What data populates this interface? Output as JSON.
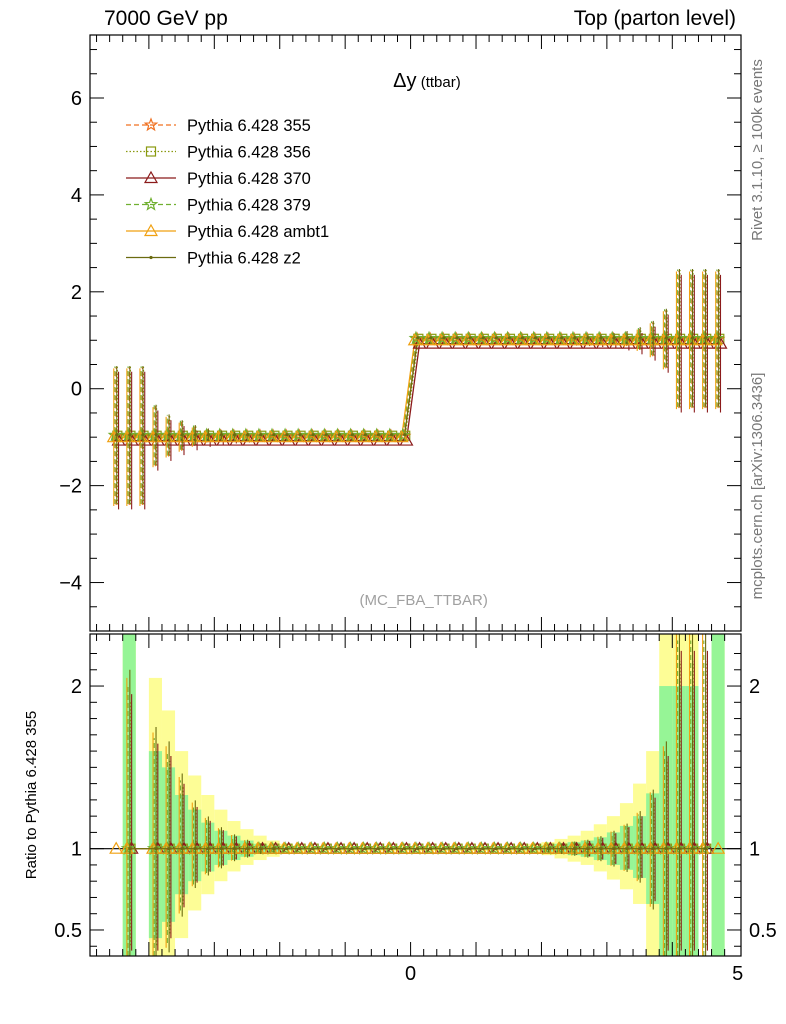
{
  "header": {
    "left": "7000 GeV pp",
    "right": "Top (parton level)"
  },
  "side_labels": {
    "rivet": "Rivet 3.1.10, ≥ 100k events",
    "mcplots": "mcplots.cern.ch [arXiv:1306.3436]"
  },
  "chart_data": [
    {
      "type": "line",
      "title": "Δy (ttbar)",
      "watermark": "(MC_FBA_TTBAR)",
      "xlim": [
        -4.9,
        5.05
      ],
      "ylim": [
        -5.0,
        7.3
      ],
      "x_ticks": [
        0,
        5
      ],
      "y_ticks": [
        -4,
        -2,
        0,
        2,
        4,
        6
      ],
      "legend": "top-left",
      "series": [
        {
          "name": "Pythia 6.428 355",
          "color": "#f07020",
          "style": "dashed",
          "marker": "star"
        },
        {
          "name": "Pythia 6.428 356",
          "color": "#8a9a10",
          "style": "dotted",
          "marker": "square"
        },
        {
          "name": "Pythia 6.428 370",
          "color": "#8b1a1a",
          "style": "solid",
          "marker": "triangle"
        },
        {
          "name": "Pythia 6.428 379",
          "color": "#70b030",
          "style": "dashed",
          "marker": "star"
        },
        {
          "name": "Pythia 6.428 ambt1",
          "color": "#f0a010",
          "style": "solid",
          "marker": "triangle"
        },
        {
          "name": "Pythia 6.428 z2",
          "color": "#6b6b10",
          "style": "solid",
          "marker": "dot"
        }
      ],
      "points": [
        {
          "x": -4.5,
          "y": -1.0,
          "err": 1.42
        },
        {
          "x": -4.3,
          "y": -1.0,
          "err": 1.42
        },
        {
          "x": -4.1,
          "y": -1.0,
          "err": 1.42
        },
        {
          "x": -3.9,
          "y": -1.0,
          "err": 0.62
        },
        {
          "x": -3.7,
          "y": -1.0,
          "err": 0.42
        },
        {
          "x": -3.5,
          "y": -1.0,
          "err": 0.3
        },
        {
          "x": -3.3,
          "y": -1.0,
          "err": 0.2
        },
        {
          "x": -3.1,
          "y": -1.0,
          "err": 0.13
        },
        {
          "x": -2.9,
          "y": -1.0,
          "err": 0.09
        },
        {
          "x": -2.7,
          "y": -1.0,
          "err": 0.06
        },
        {
          "x": -2.5,
          "y": -1.0,
          "err": 0.04
        },
        {
          "x": -2.3,
          "y": -1.0,
          "err": 0.03
        },
        {
          "x": -2.1,
          "y": -1.0,
          "err": 0.02
        },
        {
          "x": -1.9,
          "y": -1.0,
          "err": 0.015
        },
        {
          "x": -1.7,
          "y": -1.0,
          "err": 0.01
        },
        {
          "x": -1.5,
          "y": -1.0,
          "err": 0.01
        },
        {
          "x": -1.3,
          "y": -1.0,
          "err": 0.01
        },
        {
          "x": -1.1,
          "y": -1.0,
          "err": 0.01
        },
        {
          "x": -0.9,
          "y": -1.0,
          "err": 0.01
        },
        {
          "x": -0.7,
          "y": -1.0,
          "err": 0.01
        },
        {
          "x": -0.5,
          "y": -1.0,
          "err": 0.01
        },
        {
          "x": -0.3,
          "y": -1.0,
          "err": 0.01
        },
        {
          "x": -0.1,
          "y": -1.0,
          "err": 0.01
        },
        {
          "x": 0.1,
          "y": 1.0,
          "err": 0.01
        },
        {
          "x": 0.3,
          "y": 1.0,
          "err": 0.01
        },
        {
          "x": 0.5,
          "y": 1.0,
          "err": 0.01
        },
        {
          "x": 0.7,
          "y": 1.0,
          "err": 0.01
        },
        {
          "x": 0.9,
          "y": 1.0,
          "err": 0.01
        },
        {
          "x": 1.1,
          "y": 1.0,
          "err": 0.01
        },
        {
          "x": 1.3,
          "y": 1.0,
          "err": 0.01
        },
        {
          "x": 1.5,
          "y": 1.0,
          "err": 0.01
        },
        {
          "x": 1.7,
          "y": 1.0,
          "err": 0.01
        },
        {
          "x": 1.9,
          "y": 1.0,
          "err": 0.015
        },
        {
          "x": 2.1,
          "y": 1.0,
          "err": 0.02
        },
        {
          "x": 2.3,
          "y": 1.0,
          "err": 0.03
        },
        {
          "x": 2.5,
          "y": 1.0,
          "err": 0.04
        },
        {
          "x": 2.7,
          "y": 1.0,
          "err": 0.05
        },
        {
          "x": 2.9,
          "y": 1.0,
          "err": 0.07
        },
        {
          "x": 3.1,
          "y": 1.0,
          "err": 0.1
        },
        {
          "x": 3.3,
          "y": 1.0,
          "err": 0.14
        },
        {
          "x": 3.5,
          "y": 1.0,
          "err": 0.22
        },
        {
          "x": 3.7,
          "y": 1.0,
          "err": 0.35
        },
        {
          "x": 3.9,
          "y": 1.0,
          "err": 0.6
        },
        {
          "x": 4.1,
          "y": 1.0,
          "err": 1.42
        },
        {
          "x": 4.3,
          "y": 1.0,
          "err": 1.42
        },
        {
          "x": 4.5,
          "y": 1.0,
          "err": 1.42
        },
        {
          "x": 4.7,
          "y": 1.0,
          "err": 1.42
        }
      ]
    },
    {
      "type": "line",
      "ylabel": "Ratio to Pythia 6.428 355",
      "xlim": [
        -4.9,
        5.05
      ],
      "ylim": [
        0.34,
        2.32
      ],
      "x_ticks": [
        0,
        5
      ],
      "y_ticks": [
        0.5,
        1,
        2
      ],
      "reference": 1,
      "bands": [
        {
          "x0": -4.4,
          "x1": -4.2,
          "yellow": [
            0.34,
            2.32
          ],
          "green": [
            0.34,
            2.32
          ]
        },
        {
          "x0": -4.0,
          "x1": -3.8,
          "yellow": [
            0.34,
            2.05
          ],
          "green": [
            0.45,
            1.6
          ]
        },
        {
          "x0": -3.8,
          "x1": -3.6,
          "yellow": [
            0.34,
            1.85
          ],
          "green": [
            0.55,
            1.5
          ]
        },
        {
          "x0": -3.6,
          "x1": -3.4,
          "yellow": [
            0.45,
            1.6
          ],
          "green": [
            0.72,
            1.33
          ]
        },
        {
          "x0": -3.4,
          "x1": -3.2,
          "yellow": [
            0.62,
            1.45
          ],
          "green": [
            0.8,
            1.24
          ]
        },
        {
          "x0": -3.2,
          "x1": -3.0,
          "yellow": [
            0.72,
            1.33
          ],
          "green": [
            0.86,
            1.16
          ]
        },
        {
          "x0": -3.0,
          "x1": -2.8,
          "yellow": [
            0.8,
            1.24
          ],
          "green": [
            0.9,
            1.11
          ]
        },
        {
          "x0": -2.8,
          "x1": -2.6,
          "yellow": [
            0.86,
            1.17
          ],
          "green": [
            0.93,
            1.08
          ]
        },
        {
          "x0": -2.6,
          "x1": -2.4,
          "yellow": [
            0.9,
            1.12
          ],
          "green": [
            0.95,
            1.05
          ]
        },
        {
          "x0": -2.4,
          "x1": -2.2,
          "yellow": [
            0.93,
            1.08
          ],
          "green": [
            0.97,
            1.03
          ]
        },
        {
          "x0": -2.2,
          "x1": -2.0,
          "yellow": [
            0.95,
            1.05
          ],
          "green": [
            0.98,
            1.02
          ]
        },
        {
          "x0": -2.0,
          "x1": -1.8,
          "yellow": [
            0.97,
            1.03
          ],
          "green": [
            0.99,
            1.01
          ]
        },
        {
          "x0": -1.8,
          "x1": -1.6,
          "yellow": [
            0.98,
            1.02
          ],
          "green": [
            0.99,
            1.01
          ]
        },
        {
          "x0": -1.6,
          "x1": 1.6,
          "yellow": [
            0.985,
            1.015
          ],
          "green": [
            0.993,
            1.007
          ]
        },
        {
          "x0": 1.6,
          "x1": 1.8,
          "yellow": [
            0.98,
            1.02
          ],
          "green": [
            0.99,
            1.01
          ]
        },
        {
          "x0": 1.8,
          "x1": 2.0,
          "yellow": [
            0.97,
            1.03
          ],
          "green": [
            0.99,
            1.01
          ]
        },
        {
          "x0": 2.0,
          "x1": 2.2,
          "yellow": [
            0.96,
            1.04
          ],
          "green": [
            0.98,
            1.02
          ]
        },
        {
          "x0": 2.2,
          "x1": 2.4,
          "yellow": [
            0.94,
            1.06
          ],
          "green": [
            0.97,
            1.03
          ]
        },
        {
          "x0": 2.4,
          "x1": 2.6,
          "yellow": [
            0.92,
            1.08
          ],
          "green": [
            0.96,
            1.04
          ]
        },
        {
          "x0": 2.6,
          "x1": 2.8,
          "yellow": [
            0.9,
            1.11
          ],
          "green": [
            0.95,
            1.05
          ]
        },
        {
          "x0": 2.8,
          "x1": 3.0,
          "yellow": [
            0.86,
            1.15
          ],
          "green": [
            0.93,
            1.07
          ]
        },
        {
          "x0": 3.0,
          "x1": 3.2,
          "yellow": [
            0.81,
            1.2
          ],
          "green": [
            0.9,
            1.1
          ]
        },
        {
          "x0": 3.2,
          "x1": 3.4,
          "yellow": [
            0.75,
            1.28
          ],
          "green": [
            0.87,
            1.14
          ]
        },
        {
          "x0": 3.4,
          "x1": 3.6,
          "yellow": [
            0.66,
            1.4
          ],
          "green": [
            0.82,
            1.2
          ]
        },
        {
          "x0": 3.6,
          "x1": 3.8,
          "yellow": [
            0.34,
            1.6
          ],
          "green": [
            0.66,
            1.34
          ]
        },
        {
          "x0": 3.8,
          "x1": 4.0,
          "yellow": [
            0.34,
            2.32
          ],
          "green": [
            0.34,
            2.0
          ]
        },
        {
          "x0": 4.0,
          "x1": 4.2,
          "yellow": [
            0.34,
            2.32
          ],
          "green": [
            0.34,
            2.0
          ]
        },
        {
          "x0": 4.2,
          "x1": 4.4,
          "yellow": [
            0.34,
            2.32
          ],
          "green": [
            0.34,
            2.0
          ]
        },
        {
          "x0": 4.6,
          "x1": 4.8,
          "yellow": [
            0.34,
            2.32
          ],
          "green": [
            0.34,
            2.32
          ]
        }
      ],
      "points": [
        {
          "x": -4.3,
          "y": 1.0,
          "lo": 0.34,
          "hi": 2.0
        },
        {
          "x": -3.9,
          "y": 1.0,
          "lo": 0.34,
          "hi": 1.68
        },
        {
          "x": -3.7,
          "y": 1.0,
          "lo": 0.42,
          "hi": 1.6
        },
        {
          "x": -3.5,
          "y": 1.0,
          "lo": 0.62,
          "hi": 1.42
        },
        {
          "x": -3.3,
          "y": 1.0,
          "lo": 0.78,
          "hi": 1.27
        },
        {
          "x": -3.1,
          "y": 1.0,
          "lo": 0.85,
          "hi": 1.18
        },
        {
          "x": -2.9,
          "y": 1.0,
          "lo": 0.89,
          "hi": 1.12
        },
        {
          "x": -2.7,
          "y": 1.0,
          "lo": 0.93,
          "hi": 1.08
        },
        {
          "x": -2.5,
          "y": 1.0,
          "lo": 0.95,
          "hi": 1.05
        },
        {
          "x": -2.3,
          "y": 1.0,
          "lo": 0.97,
          "hi": 1.03
        },
        {
          "x": -2.1,
          "y": 1.0,
          "lo": 0.98,
          "hi": 1.02
        },
        {
          "x": -1.9,
          "y": 1.0,
          "lo": 0.99,
          "hi": 1.01
        },
        {
          "x": -1.7,
          "y": 1.0,
          "lo": 0.99,
          "hi": 1.01
        },
        {
          "x": -1.5,
          "y": 1.0,
          "lo": 0.99,
          "hi": 1.01
        },
        {
          "x": -1.3,
          "y": 1.0,
          "lo": 0.99,
          "hi": 1.01
        },
        {
          "x": -1.1,
          "y": 1.0,
          "lo": 0.99,
          "hi": 1.01
        },
        {
          "x": -0.9,
          "y": 1.0,
          "lo": 0.99,
          "hi": 1.01
        },
        {
          "x": -0.7,
          "y": 1.0,
          "lo": 0.99,
          "hi": 1.01
        },
        {
          "x": -0.5,
          "y": 1.0,
          "lo": 0.99,
          "hi": 1.01
        },
        {
          "x": -0.3,
          "y": 1.0,
          "lo": 0.99,
          "hi": 1.01
        },
        {
          "x": -0.1,
          "y": 1.0,
          "lo": 0.99,
          "hi": 1.01
        },
        {
          "x": 0.1,
          "y": 1.0,
          "lo": 0.99,
          "hi": 1.01
        },
        {
          "x": 0.3,
          "y": 1.0,
          "lo": 0.99,
          "hi": 1.01
        },
        {
          "x": 0.5,
          "y": 1.0,
          "lo": 0.99,
          "hi": 1.01
        },
        {
          "x": 0.7,
          "y": 1.0,
          "lo": 0.99,
          "hi": 1.01
        },
        {
          "x": 0.9,
          "y": 1.0,
          "lo": 0.99,
          "hi": 1.01
        },
        {
          "x": 1.1,
          "y": 1.0,
          "lo": 0.99,
          "hi": 1.01
        },
        {
          "x": 1.3,
          "y": 1.0,
          "lo": 0.99,
          "hi": 1.01
        },
        {
          "x": 1.5,
          "y": 1.0,
          "lo": 0.99,
          "hi": 1.01
        },
        {
          "x": 1.7,
          "y": 1.0,
          "lo": 0.99,
          "hi": 1.01
        },
        {
          "x": 1.9,
          "y": 1.0,
          "lo": 0.99,
          "hi": 1.01
        },
        {
          "x": 2.1,
          "y": 1.0,
          "lo": 0.98,
          "hi": 1.02
        },
        {
          "x": 2.3,
          "y": 1.0,
          "lo": 0.97,
          "hi": 1.03
        },
        {
          "x": 2.5,
          "y": 1.0,
          "lo": 0.96,
          "hi": 1.04
        },
        {
          "x": 2.7,
          "y": 1.0,
          "lo": 0.95,
          "hi": 1.05
        },
        {
          "x": 2.9,
          "y": 1.0,
          "lo": 0.93,
          "hi": 1.07
        },
        {
          "x": 3.1,
          "y": 1.0,
          "lo": 0.9,
          "hi": 1.1
        },
        {
          "x": 3.3,
          "y": 1.0,
          "lo": 0.87,
          "hi": 1.14
        },
        {
          "x": 3.5,
          "y": 1.0,
          "lo": 0.81,
          "hi": 1.21
        },
        {
          "x": 3.7,
          "y": 1.0,
          "lo": 0.66,
          "hi": 1.33
        },
        {
          "x": 3.9,
          "y": 1.0,
          "lo": 0.34,
          "hi": 1.6
        },
        {
          "x": 4.1,
          "y": 1.0,
          "lo": 0.34,
          "hi": 2.28
        },
        {
          "x": 4.3,
          "y": 1.0,
          "lo": 0.34,
          "hi": 2.28
        },
        {
          "x": 4.5,
          "y": 1.0,
          "lo": 0.34,
          "hi": 2.28
        }
      ]
    }
  ]
}
